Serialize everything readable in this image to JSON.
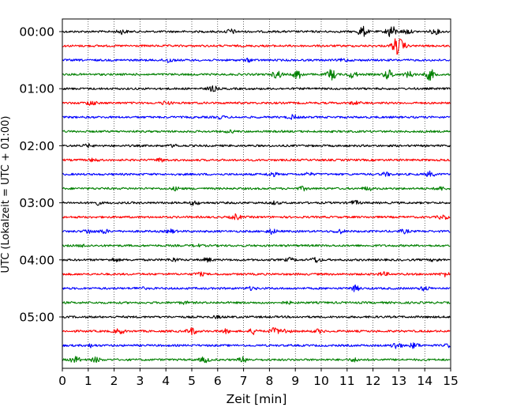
{
  "chart_data": {
    "type": "line",
    "title": "",
    "xlabel": "Zeit  [min]",
    "ylabel": "UTC (Lokalzeit = UTC + 01:00)",
    "xlim": [
      0,
      15
    ],
    "x_ticks": [
      "0",
      "1",
      "2",
      "3",
      "4",
      "5",
      "6",
      "7",
      "8",
      "9",
      "10",
      "11",
      "12",
      "13",
      "14",
      "15"
    ],
    "y_ticks": [
      "00:00",
      "01:00",
      "02:00",
      "03:00",
      "04:00",
      "05:00"
    ],
    "grid": "vertical dotted at each minute",
    "legend": "none",
    "trace_interval_min": 15,
    "color_cycle": [
      "#000000",
      "#ff0000",
      "#0000ff",
      "#008000"
    ],
    "series": [
      {
        "start": "00:00",
        "color": "#000000",
        "bursts": [
          [
            2.3,
            0.6
          ],
          [
            6.5,
            0.7
          ],
          [
            11.6,
            1.6
          ],
          [
            12.7,
            2.0
          ],
          [
            13.3,
            0.7
          ],
          [
            14.4,
            0.7
          ]
        ]
      },
      {
        "start": "00:15",
        "color": "#ff0000",
        "bursts": [
          [
            12.9,
            2.2
          ],
          [
            13.1,
            1.2
          ]
        ]
      },
      {
        "start": "00:30",
        "color": "#0000ff",
        "bursts": [
          [
            4.1,
            0.7
          ],
          [
            7.2,
            0.4
          ],
          [
            10.9,
            0.4
          ]
        ]
      },
      {
        "start": "00:45",
        "color": "#008000",
        "bursts": [
          [
            8.3,
            1.2
          ],
          [
            9.1,
            1.4
          ],
          [
            10.4,
            1.6
          ],
          [
            11.2,
            1.0
          ],
          [
            12.6,
            1.5
          ],
          [
            13.4,
            0.9
          ],
          [
            14.2,
            1.7
          ]
        ]
      },
      {
        "start": "01:00",
        "color": "#000000",
        "bursts": [
          [
            5.8,
            0.8
          ]
        ]
      },
      {
        "start": "01:15",
        "color": "#ff0000",
        "bursts": [
          [
            1.1,
            0.7
          ],
          [
            4.0,
            0.5
          ],
          [
            11.3,
            0.4
          ]
        ]
      },
      {
        "start": "01:30",
        "color": "#0000ff",
        "bursts": [
          [
            8.9,
            0.6
          ],
          [
            6.1,
            0.4
          ]
        ]
      },
      {
        "start": "01:45",
        "color": "#008000",
        "bursts": [
          [
            6.5,
            0.3
          ]
        ]
      },
      {
        "start": "02:00",
        "color": "#000000",
        "bursts": [
          [
            1.0,
            0.4
          ],
          [
            4.3,
            0.3
          ]
        ]
      },
      {
        "start": "02:15",
        "color": "#ff0000",
        "bursts": [
          [
            1.2,
            0.4
          ],
          [
            3.8,
            0.5
          ]
        ]
      },
      {
        "start": "02:30",
        "color": "#0000ff",
        "bursts": [
          [
            8.1,
            0.6
          ],
          [
            9.5,
            0.4
          ],
          [
            12.5,
            0.5
          ],
          [
            14.2,
            0.7
          ]
        ]
      },
      {
        "start": "02:45",
        "color": "#008000",
        "bursts": [
          [
            4.4,
            0.5
          ],
          [
            9.3,
            0.5
          ],
          [
            11.8,
            0.5
          ],
          [
            14.6,
            0.5
          ]
        ]
      },
      {
        "start": "03:00",
        "color": "#000000",
        "bursts": [
          [
            1.3,
            0.6
          ],
          [
            5.1,
            0.6
          ],
          [
            8.2,
            0.4
          ],
          [
            11.3,
            0.6
          ]
        ]
      },
      {
        "start": "03:15",
        "color": "#ff0000",
        "bursts": [
          [
            6.7,
            0.8
          ],
          [
            14.7,
            0.6
          ]
        ]
      },
      {
        "start": "03:30",
        "color": "#0000ff",
        "bursts": [
          [
            1.0,
            0.6
          ],
          [
            1.6,
            0.6
          ],
          [
            4.2,
            0.5
          ],
          [
            8.1,
            0.7
          ],
          [
            10.7,
            0.6
          ],
          [
            13.2,
            0.5
          ]
        ]
      },
      {
        "start": "03:45",
        "color": "#008000",
        "bursts": [
          [
            0.8,
            0.3
          ],
          [
            5.2,
            0.3
          ]
        ]
      },
      {
        "start": "04:00",
        "color": "#000000",
        "bursts": [
          [
            2.0,
            0.5
          ],
          [
            4.3,
            0.5
          ],
          [
            5.6,
            0.6
          ],
          [
            8.8,
            0.5
          ],
          [
            9.8,
            0.8
          ],
          [
            14.4,
            0.4
          ]
        ]
      },
      {
        "start": "04:15",
        "color": "#ff0000",
        "bursts": [
          [
            5.3,
            0.5
          ],
          [
            12.4,
            0.5
          ],
          [
            14.8,
            0.6
          ]
        ]
      },
      {
        "start": "04:30",
        "color": "#0000ff",
        "bursts": [
          [
            3.0,
            0.4
          ],
          [
            7.3,
            0.4
          ],
          [
            11.3,
            0.8
          ],
          [
            14.0,
            0.6
          ]
        ]
      },
      {
        "start": "04:45",
        "color": "#008000",
        "bursts": [
          [
            4.7,
            0.3
          ],
          [
            8.7,
            0.3
          ]
        ]
      },
      {
        "start": "05:00",
        "color": "#000000",
        "bursts": [
          [
            6.0,
            0.3
          ]
        ]
      },
      {
        "start": "05:15",
        "color": "#ff0000",
        "bursts": [
          [
            2.2,
            0.8
          ],
          [
            5.0,
            1.0
          ],
          [
            6.3,
            0.5
          ],
          [
            7.4,
            0.8
          ],
          [
            8.2,
            1.0
          ],
          [
            8.6,
            0.6
          ],
          [
            9.9,
            0.5
          ]
        ]
      },
      {
        "start": "05:30",
        "color": "#0000ff",
        "bursts": [
          [
            1.1,
            0.4
          ],
          [
            12.9,
            1.0
          ],
          [
            13.6,
            0.8
          ],
          [
            15.0,
            0.8
          ]
        ]
      },
      {
        "start": "05:45",
        "color": "#008000",
        "bursts": [
          [
            0.5,
            0.9
          ],
          [
            1.3,
            0.7
          ],
          [
            5.5,
            0.8
          ],
          [
            7.0,
            0.8
          ],
          [
            11.3,
            0.5
          ]
        ]
      }
    ]
  }
}
